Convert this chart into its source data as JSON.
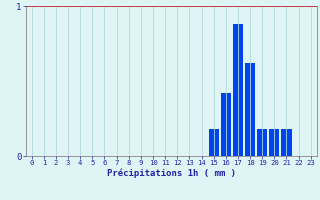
{
  "xlabel": "Précipitations 1h ( mm )",
  "bar_color": "#0044ee",
  "background_color": "#dff4f4",
  "grid_color_x": "#b0d8d8",
  "grid_color_y": "#cc3333",
  "axis_color": "#555555",
  "text_color": "#2222aa",
  "ylim": [
    0,
    1.0
  ],
  "xlim": [
    -0.5,
    23.5
  ],
  "yticks": [
    0,
    1
  ],
  "xticks": [
    0,
    1,
    2,
    3,
    4,
    5,
    6,
    7,
    8,
    9,
    10,
    11,
    12,
    13,
    14,
    15,
    16,
    17,
    18,
    19,
    20,
    21,
    22,
    23
  ],
  "hours": [
    0,
    1,
    2,
    3,
    4,
    5,
    6,
    7,
    8,
    9,
    10,
    11,
    12,
    13,
    14,
    15,
    16,
    17,
    18,
    19,
    20,
    21,
    22,
    23
  ],
  "values": [
    0,
    0,
    0,
    0,
    0,
    0,
    0,
    0,
    0,
    0,
    0,
    0,
    0,
    0,
    0,
    0.18,
    0.42,
    0.88,
    0.62,
    0.18,
    0.18,
    0.18,
    0,
    0
  ]
}
